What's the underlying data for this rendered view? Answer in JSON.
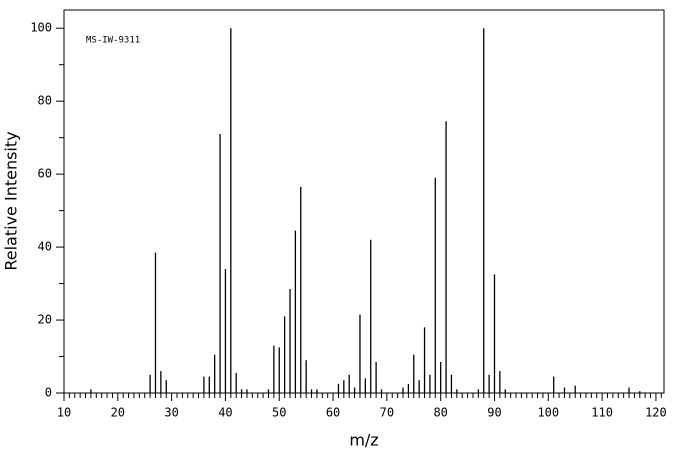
{
  "chart_data": {
    "type": "stick",
    "annotation": "MS-IW-9311",
    "xlabel": "m/z",
    "ylabel": "Relative Intensity",
    "x": [
      15,
      26,
      27,
      28,
      29,
      36,
      37,
      38,
      39,
      40,
      41,
      42,
      43,
      44,
      48,
      49,
      50,
      51,
      52,
      53,
      54,
      55,
      56,
      57,
      61,
      62,
      63,
      64,
      65,
      66,
      67,
      68,
      69,
      73,
      74,
      75,
      76,
      77,
      78,
      79,
      80,
      81,
      82,
      83,
      87,
      88,
      89,
      90,
      91,
      92,
      101,
      103,
      105,
      115,
      117
    ],
    "values": [
      1,
      5,
      38.5,
      6,
      3.5,
      4.5,
      4.5,
      10.5,
      71,
      34,
      100,
      5.5,
      1,
      1,
      1,
      13,
      12.5,
      21,
      28.5,
      44.5,
      56.5,
      9,
      1,
      1,
      2.5,
      3.5,
      5,
      1.5,
      21.5,
      4,
      42,
      8.5,
      1,
      1.5,
      2.5,
      10.5,
      3.5,
      18,
      5,
      59,
      8.5,
      74.5,
      5,
      1,
      1,
      100,
      5,
      32.5,
      6,
      1,
      4.5,
      1.5,
      2,
      1.5,
      0.5
    ],
    "color": "#000000",
    "xlim": [
      10,
      121.5
    ],
    "xticks": [
      10,
      20,
      30,
      40,
      50,
      60,
      70,
      80,
      90,
      100,
      110,
      120
    ],
    "xminorticks": [
      11,
      12,
      13,
      14,
      15,
      16,
      17,
      18,
      19,
      21,
      22,
      23,
      24,
      25,
      26,
      27,
      28,
      29,
      31,
      32,
      33,
      34,
      35,
      36,
      37,
      38,
      39,
      41,
      42,
      43,
      44,
      45,
      46,
      47,
      48,
      49,
      51,
      52,
      53,
      54,
      55,
      56,
      57,
      58,
      59,
      61,
      62,
      63,
      64,
      65,
      66,
      67,
      68,
      69,
      71,
      72,
      73,
      74,
      75,
      76,
      77,
      78,
      79,
      81,
      82,
      83,
      84,
      85,
      86,
      87,
      88,
      89,
      91,
      92,
      93,
      94,
      95,
      96,
      97,
      98,
      99,
      101,
      102,
      103,
      104,
      105,
      106,
      107,
      108,
      109,
      111,
      112,
      113,
      114,
      115,
      116,
      117,
      118,
      119,
      121
    ],
    "ylim": [
      0,
      105
    ],
    "yticks": [
      0,
      20,
      40,
      60,
      80,
      100
    ],
    "yminorticks": [
      10,
      30,
      50,
      70,
      90
    ]
  }
}
